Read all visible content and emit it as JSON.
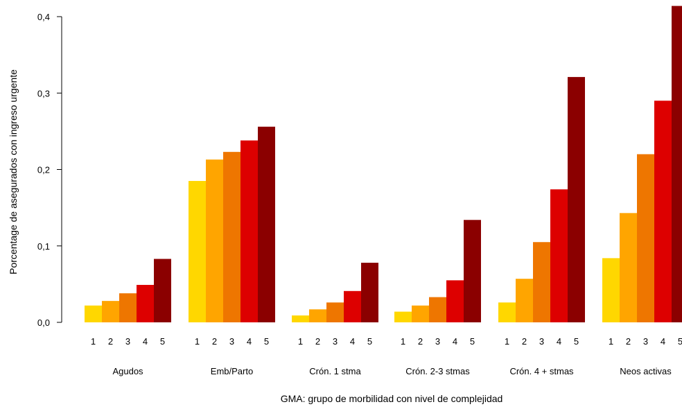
{
  "chart_data": {
    "type": "bar",
    "title": "",
    "xlabel": "GMA: grupo de morbilidad con nivel de complejidad",
    "ylabel": "Porcentage de asegurados con ingreso urgente",
    "ylim": [
      0,
      0.4
    ],
    "y_ticks": [
      "0,0",
      "0,1",
      "0,2",
      "0,3",
      "0,4"
    ],
    "grid": false,
    "legend": "none",
    "bar_labels": [
      "1",
      "2",
      "3",
      "4",
      "5"
    ],
    "colors": [
      "#FFD700",
      "#FFA500",
      "#EE7600",
      "#DD0000",
      "#8B0000"
    ],
    "groups": [
      {
        "name": "Agudos",
        "values": [
          0.022,
          0.028,
          0.038,
          0.049,
          0.083
        ]
      },
      {
        "name": "Emb/Parto",
        "values": [
          0.185,
          0.213,
          0.223,
          0.238,
          0.256
        ]
      },
      {
        "name": "Crón. 1 stma",
        "values": [
          0.009,
          0.017,
          0.026,
          0.041,
          0.078
        ]
      },
      {
        "name": "Crón. 2-3 stmas",
        "values": [
          0.014,
          0.022,
          0.033,
          0.055,
          0.134
        ]
      },
      {
        "name": "Crón. 4 + stmas",
        "values": [
          0.026,
          0.057,
          0.105,
          0.174,
          0.321
        ]
      },
      {
        "name": "Neos activas",
        "values": [
          0.084,
          0.143,
          0.22,
          0.29,
          0.414
        ]
      }
    ]
  }
}
